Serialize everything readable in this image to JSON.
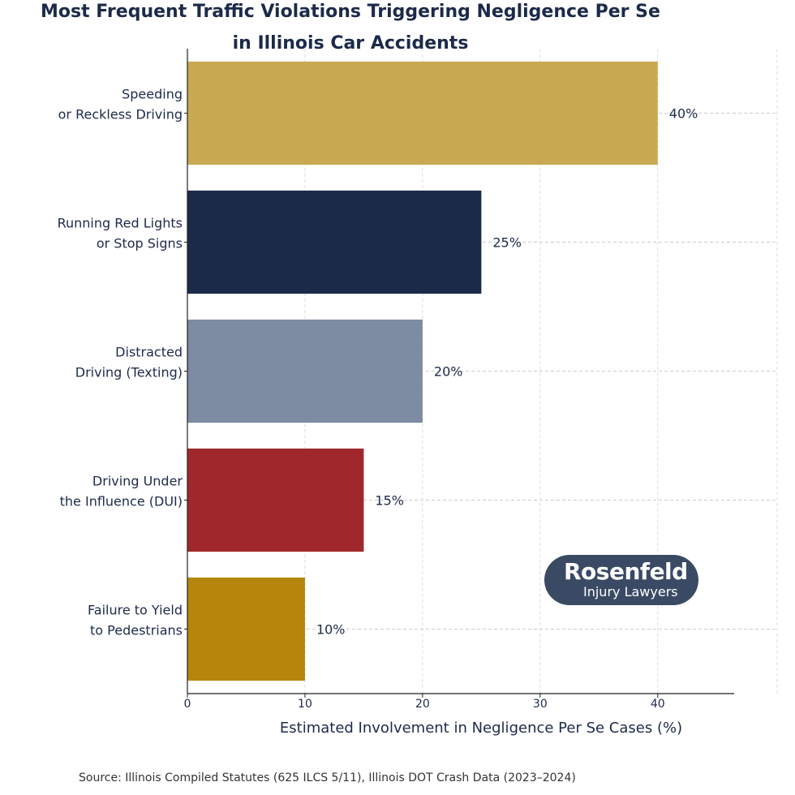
{
  "chart_data": {
    "type": "bar",
    "orientation": "horizontal",
    "title_line1": "Most Frequent Traffic Violations Triggering Negligence Per Se",
    "title_line2": "in Illinois Car Accidents",
    "xlabel": "Estimated Involvement in Negligence Per Se Cases (%)",
    "ylabel": "",
    "xlim": [
      0,
      46.5
    ],
    "xticks": [
      0,
      10,
      20,
      30,
      40
    ],
    "grid": true,
    "categories": [
      [
        "Speeding",
        "or Reckless Driving"
      ],
      [
        "Running Red Lights",
        "or Stop Signs"
      ],
      [
        "Distracted",
        "Driving (Texting)"
      ],
      [
        "Driving Under",
        "the Influence (DUI)"
      ],
      [
        "Failure to Yield",
        "to Pedestrians"
      ]
    ],
    "values": [
      40,
      25,
      20,
      15,
      10
    ],
    "value_labels": [
      "40%",
      "25%",
      "20%",
      "15%",
      "10%"
    ],
    "colors": [
      "#c8a951",
      "#1c2a4a",
      "#7d8ba3",
      "#a0282d",
      "#b5860b"
    ]
  },
  "source": "Source: Illinois Compiled Statutes (625 ILCS 5/11), Illinois DOT Crash Data (2023–2024)",
  "logo": {
    "main": "Rosenfeld",
    "sub": "Injury Lawyers"
  }
}
